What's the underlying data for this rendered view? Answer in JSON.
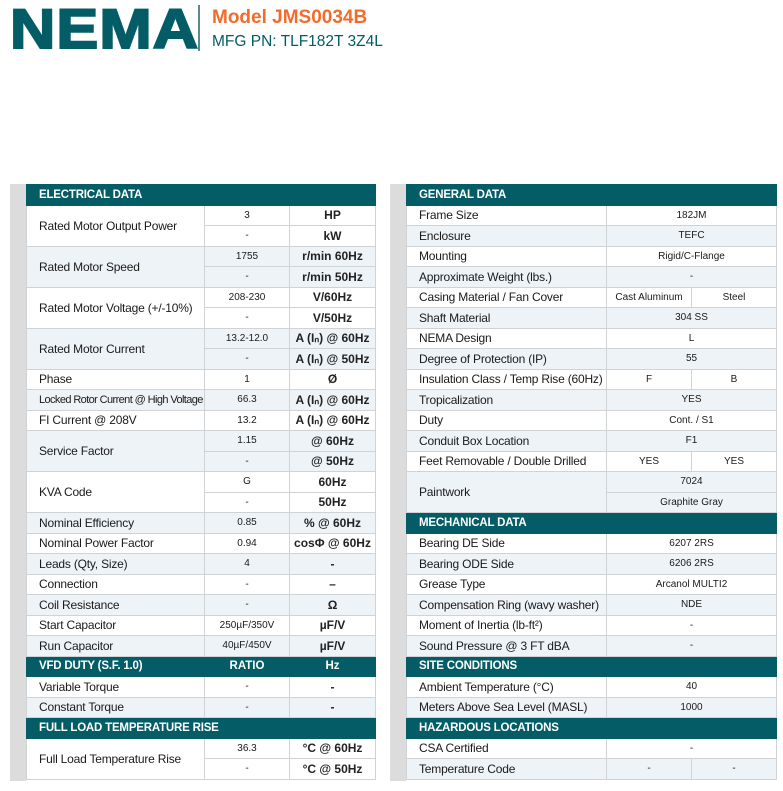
{
  "header": {
    "brand": "NEMA",
    "model": "Model JMS0034B",
    "mfg_pn": "MFG PN: TLF182T 3Z4L"
  },
  "colors": {
    "brand_teal": "#035c66",
    "accent_orange": "#f26b2a",
    "row_shade": "#eef3f8"
  },
  "left_sections": [
    {
      "title": "ELECTRICAL DATA",
      "rows": [
        {
          "label": "Rated Motor Output Power",
          "sub": [
            [
              "3",
              "HP"
            ],
            [
              "-",
              "kW"
            ]
          ]
        },
        {
          "label": "Rated Motor Speed",
          "sub": [
            [
              "1755",
              "r/min 60Hz"
            ],
            [
              "-",
              "r/min 50Hz"
            ]
          ]
        },
        {
          "label": "Rated Motor Voltage (+/-10%)",
          "sub": [
            [
              "208-230",
              "V/60Hz"
            ],
            [
              "-",
              "V/50Hz"
            ]
          ]
        },
        {
          "label": "Rated Motor Current",
          "sub": [
            [
              "13.2-12.0",
              "A (Iₙ) @ 60Hz"
            ],
            [
              "-",
              "A (Iₙ) @ 50Hz"
            ]
          ]
        },
        {
          "label": "Phase",
          "sub": [
            [
              "1",
              "Ø"
            ]
          ]
        },
        {
          "label": "Locked Rotor Current @ High Voltage",
          "sub": [
            [
              "66.3",
              "A (Iₙ) @ 60Hz"
            ]
          ]
        },
        {
          "label": "FI Current @ 208V",
          "sub": [
            [
              "13.2",
              "A (Iₙ) @ 60Hz"
            ]
          ]
        },
        {
          "label": "Service Factor",
          "sub": [
            [
              "1.15",
              "@ 60Hz"
            ],
            [
              "-",
              "@ 50Hz"
            ]
          ]
        },
        {
          "label": "KVA Code",
          "sub": [
            [
              "G",
              "60Hz"
            ],
            [
              "-",
              "50Hz"
            ]
          ]
        },
        {
          "label": "Nominal Efficiency",
          "sub": [
            [
              "0.85",
              "% @ 60Hz"
            ]
          ]
        },
        {
          "label": "Nominal Power Factor",
          "sub": [
            [
              "0.94",
              "cosΦ @ 60Hz"
            ]
          ]
        },
        {
          "label": "Leads (Qty, Size)",
          "sub": [
            [
              "4",
              "-"
            ]
          ]
        },
        {
          "label": "Connection",
          "sub": [
            [
              "-",
              "–"
            ]
          ]
        },
        {
          "label": "Coil Resistance",
          "sub": [
            [
              "-",
              "Ω"
            ]
          ]
        },
        {
          "label": "Start Capacitor",
          "sub": [
            [
              "250µF/350V",
              "µF/V"
            ]
          ]
        },
        {
          "label": "Run Capacitor",
          "sub": [
            [
              "40µF/450V",
              "µF/V"
            ]
          ]
        }
      ]
    },
    {
      "title": "VFD DUTY (S.F. 1.0)",
      "cols": [
        "RATIO",
        "Hz"
      ],
      "rows": [
        {
          "label": "Variable Torque",
          "sub": [
            [
              "-",
              "-"
            ]
          ]
        },
        {
          "label": "Constant Torque",
          "sub": [
            [
              "-",
              "-"
            ]
          ]
        }
      ]
    },
    {
      "title": "FULL LOAD TEMPERATURE RISE",
      "rows": [
        {
          "label": "Full Load Temperature Rise",
          "sub": [
            [
              "36.3",
              "°C @ 60Hz"
            ],
            [
              "-",
              "°C @ 50Hz"
            ]
          ]
        }
      ]
    }
  ],
  "right_sections": [
    {
      "title": "GENERAL DATA",
      "rows": [
        {
          "label": "Frame Size",
          "value": "182JM"
        },
        {
          "label": "Enclosure",
          "value": "TEFC"
        },
        {
          "label": "Mounting",
          "value": "Rigid/C-Flange"
        },
        {
          "label": "Approximate Weight (lbs.)",
          "value": "-"
        },
        {
          "label": "Casing Material / Fan Cover",
          "split": [
            "Cast Aluminum",
            "Steel"
          ]
        },
        {
          "label": "Shaft Material",
          "value": "304 SS"
        },
        {
          "label": "NEMA Design",
          "value": "L"
        },
        {
          "label": "Degree of Protection (IP)",
          "value": "55"
        },
        {
          "label": "Insulation Class / Temp Rise (60Hz)",
          "split": [
            "F",
            "B"
          ]
        },
        {
          "label": "Tropicalization",
          "value": "YES"
        },
        {
          "label": "Duty",
          "value": "Cont. / S1"
        },
        {
          "label": "Conduit Box Location",
          "value": "F1"
        },
        {
          "label": "Feet Removable / Double Drilled",
          "split": [
            "YES",
            "YES"
          ]
        },
        {
          "label": "Paintwork",
          "stack": [
            "7024",
            "Graphite Gray"
          ]
        }
      ]
    },
    {
      "title": "MECHANICAL DATA",
      "rows": [
        {
          "label": "Bearing DE Side",
          "value": "6207 2RS"
        },
        {
          "label": "Bearing ODE Side",
          "value": "6206 2RS"
        },
        {
          "label": "Grease Type",
          "value": "Arcanol MULTI2"
        },
        {
          "label": "Compensation Ring (wavy washer)",
          "value": "NDE"
        },
        {
          "label": "Moment of Inertia (lb-ft²)",
          "value": "-"
        },
        {
          "label": "Sound Pressure @ 3 FT dBA",
          "value": "-"
        }
      ]
    },
    {
      "title": "SITE CONDITIONS",
      "rows": [
        {
          "label": "Ambient Temperature (°C)",
          "value": "40"
        },
        {
          "label": "Meters Above Sea Level (MASL)",
          "value": "1000"
        }
      ]
    },
    {
      "title": "HAZARDOUS LOCATIONS",
      "rows": [
        {
          "label": "CSA Certified",
          "value": "-"
        },
        {
          "label": "Temperature Code",
          "split": [
            "-",
            "-"
          ]
        }
      ]
    }
  ]
}
